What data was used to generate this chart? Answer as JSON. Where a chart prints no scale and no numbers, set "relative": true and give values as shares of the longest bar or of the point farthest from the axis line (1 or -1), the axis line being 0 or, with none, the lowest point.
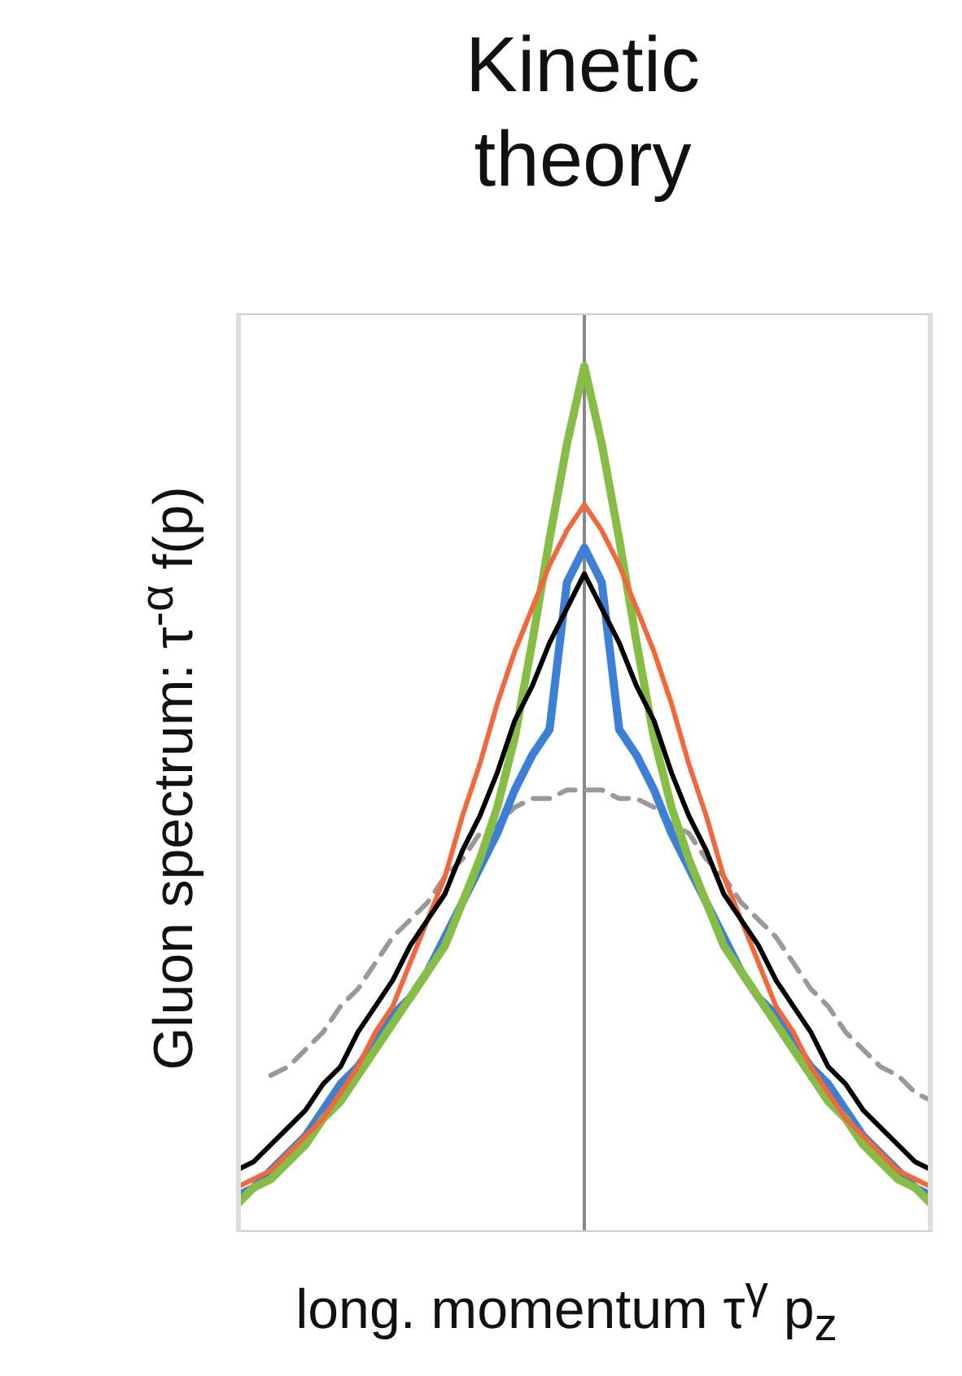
{
  "chart_data": {
    "type": "line",
    "title": "Kinetic theory",
    "xlabel": "long. momentum τ$^{γ}$ p$_{z}$",
    "ylabel": "Gluon spectrum: τ$^{-α}$ f(p)",
    "relative": true,
    "marker": "none",
    "categories": [
      null,
      null,
      null,
      null,
      null,
      null,
      null,
      null,
      null,
      null,
      null,
      null,
      null,
      null,
      null,
      null,
      null,
      null,
      null,
      null,
      null,
      null,
      null,
      null,
      null,
      null,
      null,
      null,
      null,
      null,
      null,
      null,
      null,
      null,
      null,
      null,
      null,
      null,
      null,
      null,
      null
    ],
    "ref_lines": [
      {
        "axis": "x",
        "color": "#888888"
      }
    ],
    "series": [
      {
        "color": "#999999",
        "line_style": "dashed",
        "values": [
          null,
          null,
          0.18,
          0.19,
          0.21,
          0.23,
          0.26,
          0.28,
          0.31,
          0.34,
          0.36,
          0.38,
          0.41,
          0.43,
          0.46,
          0.47,
          0.49,
          0.5,
          0.5,
          0.51,
          0.51,
          0.51,
          0.5,
          0.5,
          0.49,
          0.47,
          0.46,
          0.43,
          0.41,
          0.38,
          0.36,
          0.34,
          0.31,
          0.28,
          0.26,
          0.23,
          0.21,
          0.19,
          0.18,
          0.16,
          0.15
        ]
      },
      {
        "color": "#3b80d6",
        "values": [
          0.04,
          0.05,
          0.07,
          0.09,
          0.11,
          0.14,
          0.17,
          0.19,
          0.22,
          0.25,
          0.27,
          0.3,
          0.34,
          0.38,
          0.42,
          0.46,
          0.51,
          0.55,
          0.58,
          0.75,
          0.79,
          0.75,
          0.58,
          0.55,
          0.51,
          0.46,
          0.42,
          0.38,
          0.34,
          0.3,
          0.27,
          0.25,
          0.22,
          0.19,
          0.17,
          0.14,
          0.11,
          0.09,
          0.07,
          0.05,
          0.04
        ]
      },
      {
        "color": "#86bd45",
        "values": [
          0.03,
          0.05,
          0.06,
          0.08,
          0.1,
          0.13,
          0.15,
          0.18,
          0.21,
          0.24,
          0.27,
          0.3,
          0.33,
          0.38,
          0.43,
          0.49,
          0.57,
          0.68,
          0.8,
          0.91,
          1,
          0.91,
          0.8,
          0.68,
          0.57,
          0.49,
          0.43,
          0.38,
          0.33,
          0.3,
          0.27,
          0.24,
          0.21,
          0.18,
          0.15,
          0.13,
          0.1,
          0.08,
          0.06,
          0.05,
          0.03
        ]
      },
      {
        "color": "#f2683a",
        "values": [
          0.05,
          0.06,
          0.07,
          0.09,
          0.11,
          0.13,
          0.16,
          0.19,
          0.23,
          0.26,
          0.31,
          0.36,
          0.41,
          0.48,
          0.54,
          0.61,
          0.67,
          0.72,
          0.77,
          0.81,
          0.84,
          0.81,
          0.77,
          0.72,
          0.67,
          0.61,
          0.54,
          0.48,
          0.41,
          0.36,
          0.31,
          0.26,
          0.23,
          0.19,
          0.16,
          0.13,
          0.11,
          0.09,
          0.07,
          0.06,
          0.05
        ]
      },
      {
        "color": "#000000",
        "values": [
          0.07,
          0.08,
          0.1,
          0.12,
          0.14,
          0.17,
          0.19,
          0.23,
          0.26,
          0.29,
          0.33,
          0.36,
          0.39,
          0.44,
          0.48,
          0.53,
          0.59,
          0.63,
          0.68,
          0.72,
          0.76,
          0.72,
          0.68,
          0.63,
          0.59,
          0.53,
          0.48,
          0.44,
          0.39,
          0.36,
          0.33,
          0.29,
          0.26,
          0.23,
          0.19,
          0.17,
          0.14,
          0.12,
          0.1,
          0.08,
          0.07
        ]
      }
    ]
  }
}
